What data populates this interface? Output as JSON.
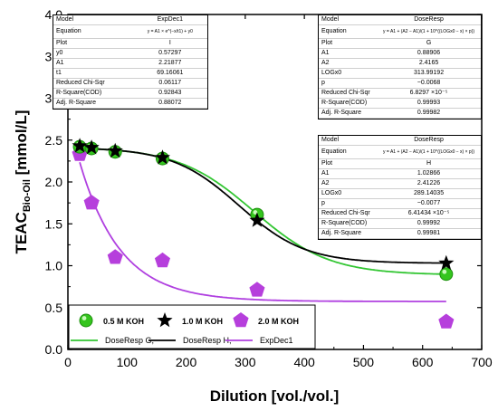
{
  "chart_data": {
    "type": "scatter",
    "xlabel": "Dilution [vol./vol.]",
    "ylabel": "TEAC",
    "ylabel_subscript": "Bio-Oil",
    "ylabel_unit": "[mmol/L]",
    "xlim": [
      0,
      700
    ],
    "ylim": [
      0.0,
      4.0
    ],
    "xticks": [
      "0",
      "100",
      "200",
      "300",
      "400",
      "500",
      "600",
      "700"
    ],
    "yticks": [
      "0.0",
      "0.5",
      "1.0",
      "1.5",
      "2.0",
      "2.5",
      "3.0",
      "3.5",
      "4.0"
    ],
    "series": [
      {
        "name": "0.5 M KOH",
        "marker": "circle",
        "color": "#35c51e",
        "x": [
          20,
          40,
          80,
          160,
          320,
          640
        ],
        "y": [
          2.42,
          2.4,
          2.36,
          2.28,
          1.61,
          0.9
        ]
      },
      {
        "name": "1.0 M KOH",
        "marker": "star",
        "color": "#000000",
        "x": [
          20,
          40,
          80,
          160,
          320,
          640
        ],
        "y": [
          2.43,
          2.41,
          2.37,
          2.29,
          1.54,
          1.03
        ]
      },
      {
        "name": "2.0 M KOH",
        "marker": "pentagon",
        "color": "#b63fdc",
        "x": [
          20,
          40,
          80,
          160,
          320,
          640
        ],
        "y": [
          2.33,
          1.75,
          1.1,
          1.06,
          0.71,
          0.33
        ]
      }
    ],
    "fits": [
      {
        "name": "DoseResp G",
        "color": "#33c633",
        "model": "DoseResp",
        "A1": 0.88906,
        "A2": 2.4165,
        "LOGx0": 313.99192,
        "p": -0.0068
      },
      {
        "name": "DoseResp H",
        "color": "#000000",
        "model": "DoseResp",
        "A1": 1.02866,
        "A2": 2.41226,
        "LOGx0": 289.14035,
        "p": -0.0077
      },
      {
        "name": "ExpDec1",
        "color": "#b040e0",
        "model": "ExpDec1",
        "y0": 0.57297,
        "A1": 2.21877,
        "t1": 69.16061
      }
    ],
    "legend": {
      "items": [
        "0.5 M KOH",
        "1.0 M KOH",
        "2.0 M KOH"
      ],
      "fit_items": [
        "DoseResp G,",
        "DoseResp H,",
        "ExpDec1"
      ],
      "placement": "bottom-left"
    },
    "grid": false
  },
  "tables": {
    "exp": {
      "header": [
        "Model",
        "ExpDec1"
      ],
      "rows": [
        [
          "Equation",
          "y = A1 × e^(−x/t1) + y0"
        ],
        [
          "Plot",
          "I"
        ],
        [
          "y0",
          "0.57297"
        ],
        [
          "A1",
          "2.21877"
        ],
        [
          "t1",
          "69.16061"
        ],
        [
          "Reduced Chi-Sqr",
          "0.06117"
        ],
        [
          "R-Square(COD)",
          "0.92843"
        ],
        [
          "Adj. R-Square",
          "0.88072"
        ]
      ]
    },
    "g": {
      "header": [
        "Model",
        "DoseResp"
      ],
      "rows": [
        [
          "Equation",
          "y = A1 + (A2 − A1)/(1 + 10^((LOGx0 − x) × p))"
        ],
        [
          "Plot",
          "G"
        ],
        [
          "A1",
          "0.88906"
        ],
        [
          "A2",
          "2.4165"
        ],
        [
          "LOGx0",
          "313.99192"
        ],
        [
          "p",
          "−0.0068"
        ],
        [
          "Reduced Chi-Sqr",
          "6.8297 ×10⁻⁵"
        ],
        [
          "R-Square(COD)",
          "0.99993"
        ],
        [
          "Adj. R-Square",
          "0.99982"
        ]
      ]
    },
    "h": {
      "header": [
        "Model",
        "DoseResp"
      ],
      "rows": [
        [
          "Equation",
          "y = A1 + (A2 − A1)/(1 + 10^((LOGx0 − x) × p))"
        ],
        [
          "Plot",
          "H"
        ],
        [
          "A1",
          "1.02866"
        ],
        [
          "A2",
          "2.41226"
        ],
        [
          "LOGx0",
          "289.14035"
        ],
        [
          "p",
          "−0.0077"
        ],
        [
          "Reduced Chi-Sqr",
          "6.41434 ×10⁻⁵"
        ],
        [
          "R-Square(COD)",
          "0.99992"
        ],
        [
          "Adj. R-Square",
          "0.99981"
        ]
      ]
    }
  }
}
